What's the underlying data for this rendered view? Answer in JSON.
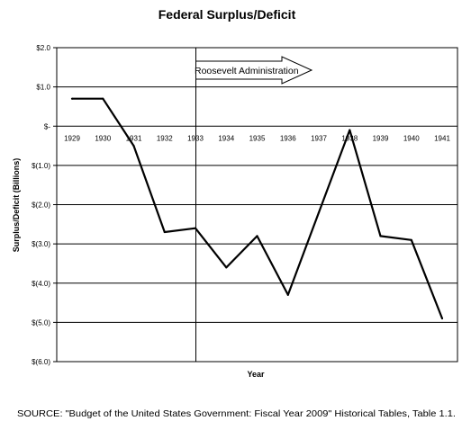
{
  "chart_data": {
    "type": "line",
    "title": "Federal Surplus/Deficit",
    "xlabel": "Year",
    "ylabel": "Surplus/Deficit (Billions)",
    "x": [
      "1929",
      "1930",
      "1931",
      "1932",
      "1933",
      "1934",
      "1935",
      "1936",
      "1937",
      "1938",
      "1939",
      "1940",
      "1941"
    ],
    "series": [
      {
        "values": [
          0.7,
          0.7,
          -0.5,
          -2.7,
          -2.6,
          -3.6,
          -2.8,
          -4.3,
          -2.2,
          -0.1,
          -2.8,
          -2.9,
          -4.9
        ]
      }
    ],
    "y_ticks": [
      {
        "value": 2.0,
        "label": "$2.0"
      },
      {
        "value": 1.0,
        "label": "$1.0"
      },
      {
        "value": 0,
        "label": "$-"
      },
      {
        "value": -1.0,
        "label": "$(1.0)"
      },
      {
        "value": -2.0,
        "label": "$(2.0)"
      },
      {
        "value": -3.0,
        "label": "$(3.0)"
      },
      {
        "value": -4.0,
        "label": "$(4.0)"
      },
      {
        "value": -5.0,
        "label": "$(5.0)"
      },
      {
        "value": -6.0,
        "label": "$(6.0)"
      }
    ],
    "ylim": [
      -6.0,
      2.0
    ],
    "grid": true,
    "legend": "none",
    "annotation": {
      "text": "Roosevelt Administration",
      "marker_year": "1933"
    },
    "line_color": "#000000"
  },
  "source": "SOURCE: \"Budget of the United States Government: Fiscal Year 2009\" Historical Tables, Table 1.1."
}
